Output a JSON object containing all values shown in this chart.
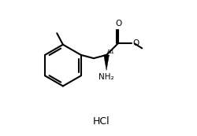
{
  "bg_color": "#ffffff",
  "line_color": "#000000",
  "line_width": 1.5,
  "hcl_text": "HCl",
  "stereo_label": "&1",
  "nh2_label": "NH₂",
  "o_label": "O",
  "figsize": [
    2.5,
    1.73
  ],
  "dpi": 100
}
